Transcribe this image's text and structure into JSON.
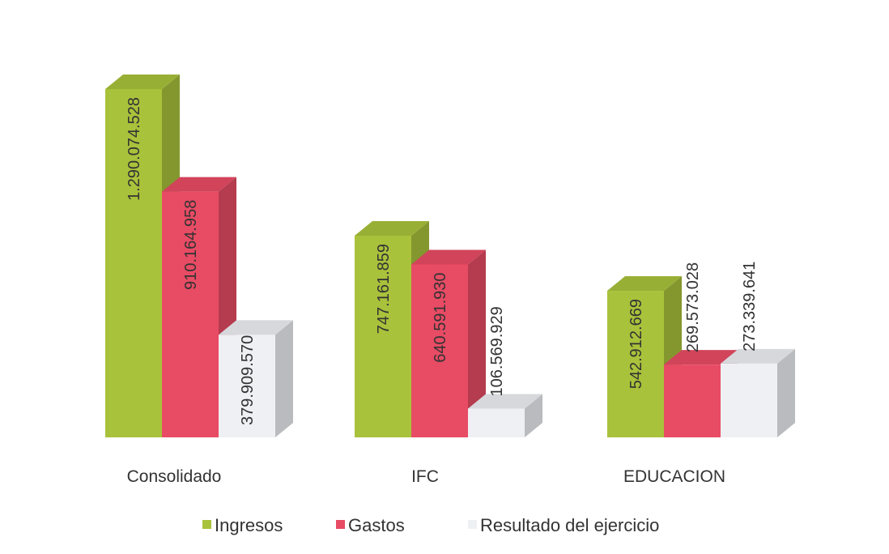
{
  "chart_data": {
    "type": "bar3d",
    "categories": [
      "Consolidado",
      "IFC",
      "EDUCACION"
    ],
    "series": [
      {
        "name": "Ingresos",
        "color": "#a9c23b",
        "values": [
          1290074528,
          747161859,
          542912669
        ],
        "value_labels": [
          "1.290.074.528",
          "747.161.859",
          "542.912.669"
        ]
      },
      {
        "name": "Gastos",
        "color": "#e84b64",
        "values": [
          910164958,
          640591930,
          269573028
        ],
        "value_labels": [
          "910.164.958",
          "640.591.930",
          "269.573.028"
        ]
      },
      {
        "name": "Resultado del ejercicio",
        "color": "#eff0f4",
        "values": [
          379909570,
          106569929,
          273339641
        ],
        "value_labels": [
          "379.909.570",
          "106.569.929",
          "273.339.641"
        ]
      }
    ],
    "legend": "bottom"
  }
}
